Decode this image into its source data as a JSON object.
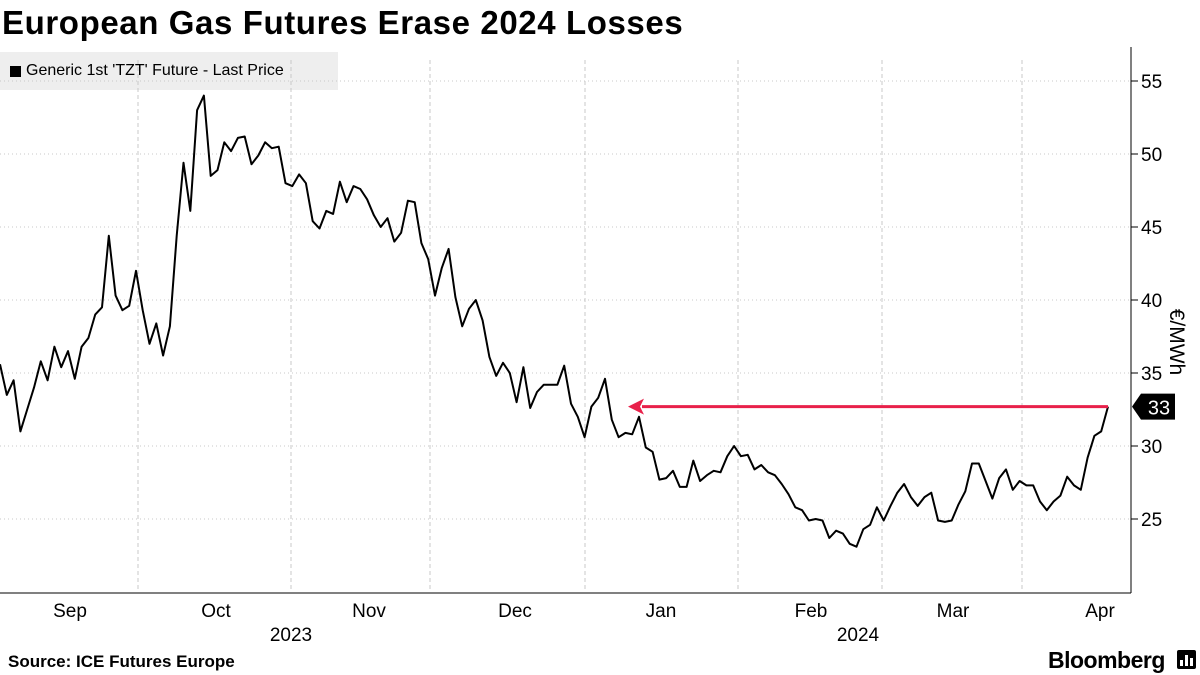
{
  "title": "European Gas Futures Erase 2024 Losses",
  "source": "Source: ICE Futures Europe",
  "brand": "Bloomberg",
  "chart_data": {
    "type": "line",
    "title": "European Gas Futures Erase 2024 Losses",
    "ylabel": "€/MWh",
    "xlabel": "",
    "ylim": [
      20,
      57
    ],
    "yticks": [
      25,
      30,
      35,
      40,
      45,
      50,
      55
    ],
    "grid": "vertical-dashed",
    "legend": "top-left",
    "series": [
      {
        "name": "Generic 1st 'TZT' Future - Last Price",
        "color": "#000000",
        "values": [
          35.6,
          33.5,
          34.5,
          31.0,
          32.5,
          34.0,
          35.8,
          34.5,
          36.8,
          35.4,
          36.5,
          34.6,
          36.8,
          37.4,
          39.0,
          39.5,
          44.4,
          40.3,
          39.3,
          39.6,
          42.0,
          39.3,
          37.0,
          38.4,
          36.2,
          38.2,
          44.4,
          49.4,
          46.1,
          53.0,
          54.0,
          48.5,
          48.9,
          50.8,
          50.2,
          51.1,
          51.2,
          49.3,
          49.9,
          50.8,
          50.4,
          50.5,
          48.0,
          47.8,
          48.6,
          48.0,
          45.4,
          44.9,
          46.1,
          45.9,
          48.1,
          46.7,
          47.8,
          47.6,
          46.9,
          45.8,
          45.0,
          45.6,
          44.0,
          44.6,
          46.8,
          46.7,
          43.9,
          42.8,
          40.3,
          42.2,
          43.5,
          40.2,
          38.2,
          39.4,
          40.0,
          38.6,
          36.1,
          34.8,
          35.7,
          35.0,
          33.0,
          35.4,
          32.6,
          33.7,
          34.2,
          34.2,
          34.2,
          35.5,
          32.9,
          32.0,
          30.6,
          32.7,
          33.3,
          34.6,
          31.8,
          30.6,
          30.9,
          30.8,
          32.0,
          29.9,
          29.6,
          27.7,
          27.8,
          28.3,
          27.2,
          27.2,
          29.0,
          27.6,
          28.0,
          28.3,
          28.2,
          29.3,
          30.0,
          29.3,
          29.4,
          28.4,
          28.7,
          28.2,
          28.0,
          27.4,
          26.7,
          25.8,
          25.6,
          24.9,
          25.0,
          24.9,
          23.7,
          24.2,
          24.0,
          23.3,
          23.1,
          24.3,
          24.6,
          25.8,
          24.9,
          25.9,
          26.8,
          27.4,
          26.5,
          25.9,
          26.5,
          26.8,
          24.9,
          24.8,
          24.9,
          26.0,
          26.9,
          28.8,
          28.8,
          27.6,
          26.4,
          27.8,
          28.4,
          27.0,
          27.6,
          27.3,
          27.3,
          26.2,
          25.6,
          26.2,
          26.6,
          27.9,
          27.3,
          27.0,
          29.2,
          30.7,
          31.0,
          32.7
        ]
      }
    ],
    "x_tick_labels": [
      "Sep",
      "Oct",
      "Nov",
      "Dec",
      "Jan",
      "Feb",
      "Mar",
      "Apr"
    ],
    "x_year_labels": [
      "2023",
      "2024"
    ],
    "last_value_label": "33",
    "annotation": {
      "type": "arrow",
      "color": "#e8204a",
      "from_value": 32.7,
      "to_value": 32.7,
      "description": "red horizontal arrow pointing back to December level"
    }
  }
}
